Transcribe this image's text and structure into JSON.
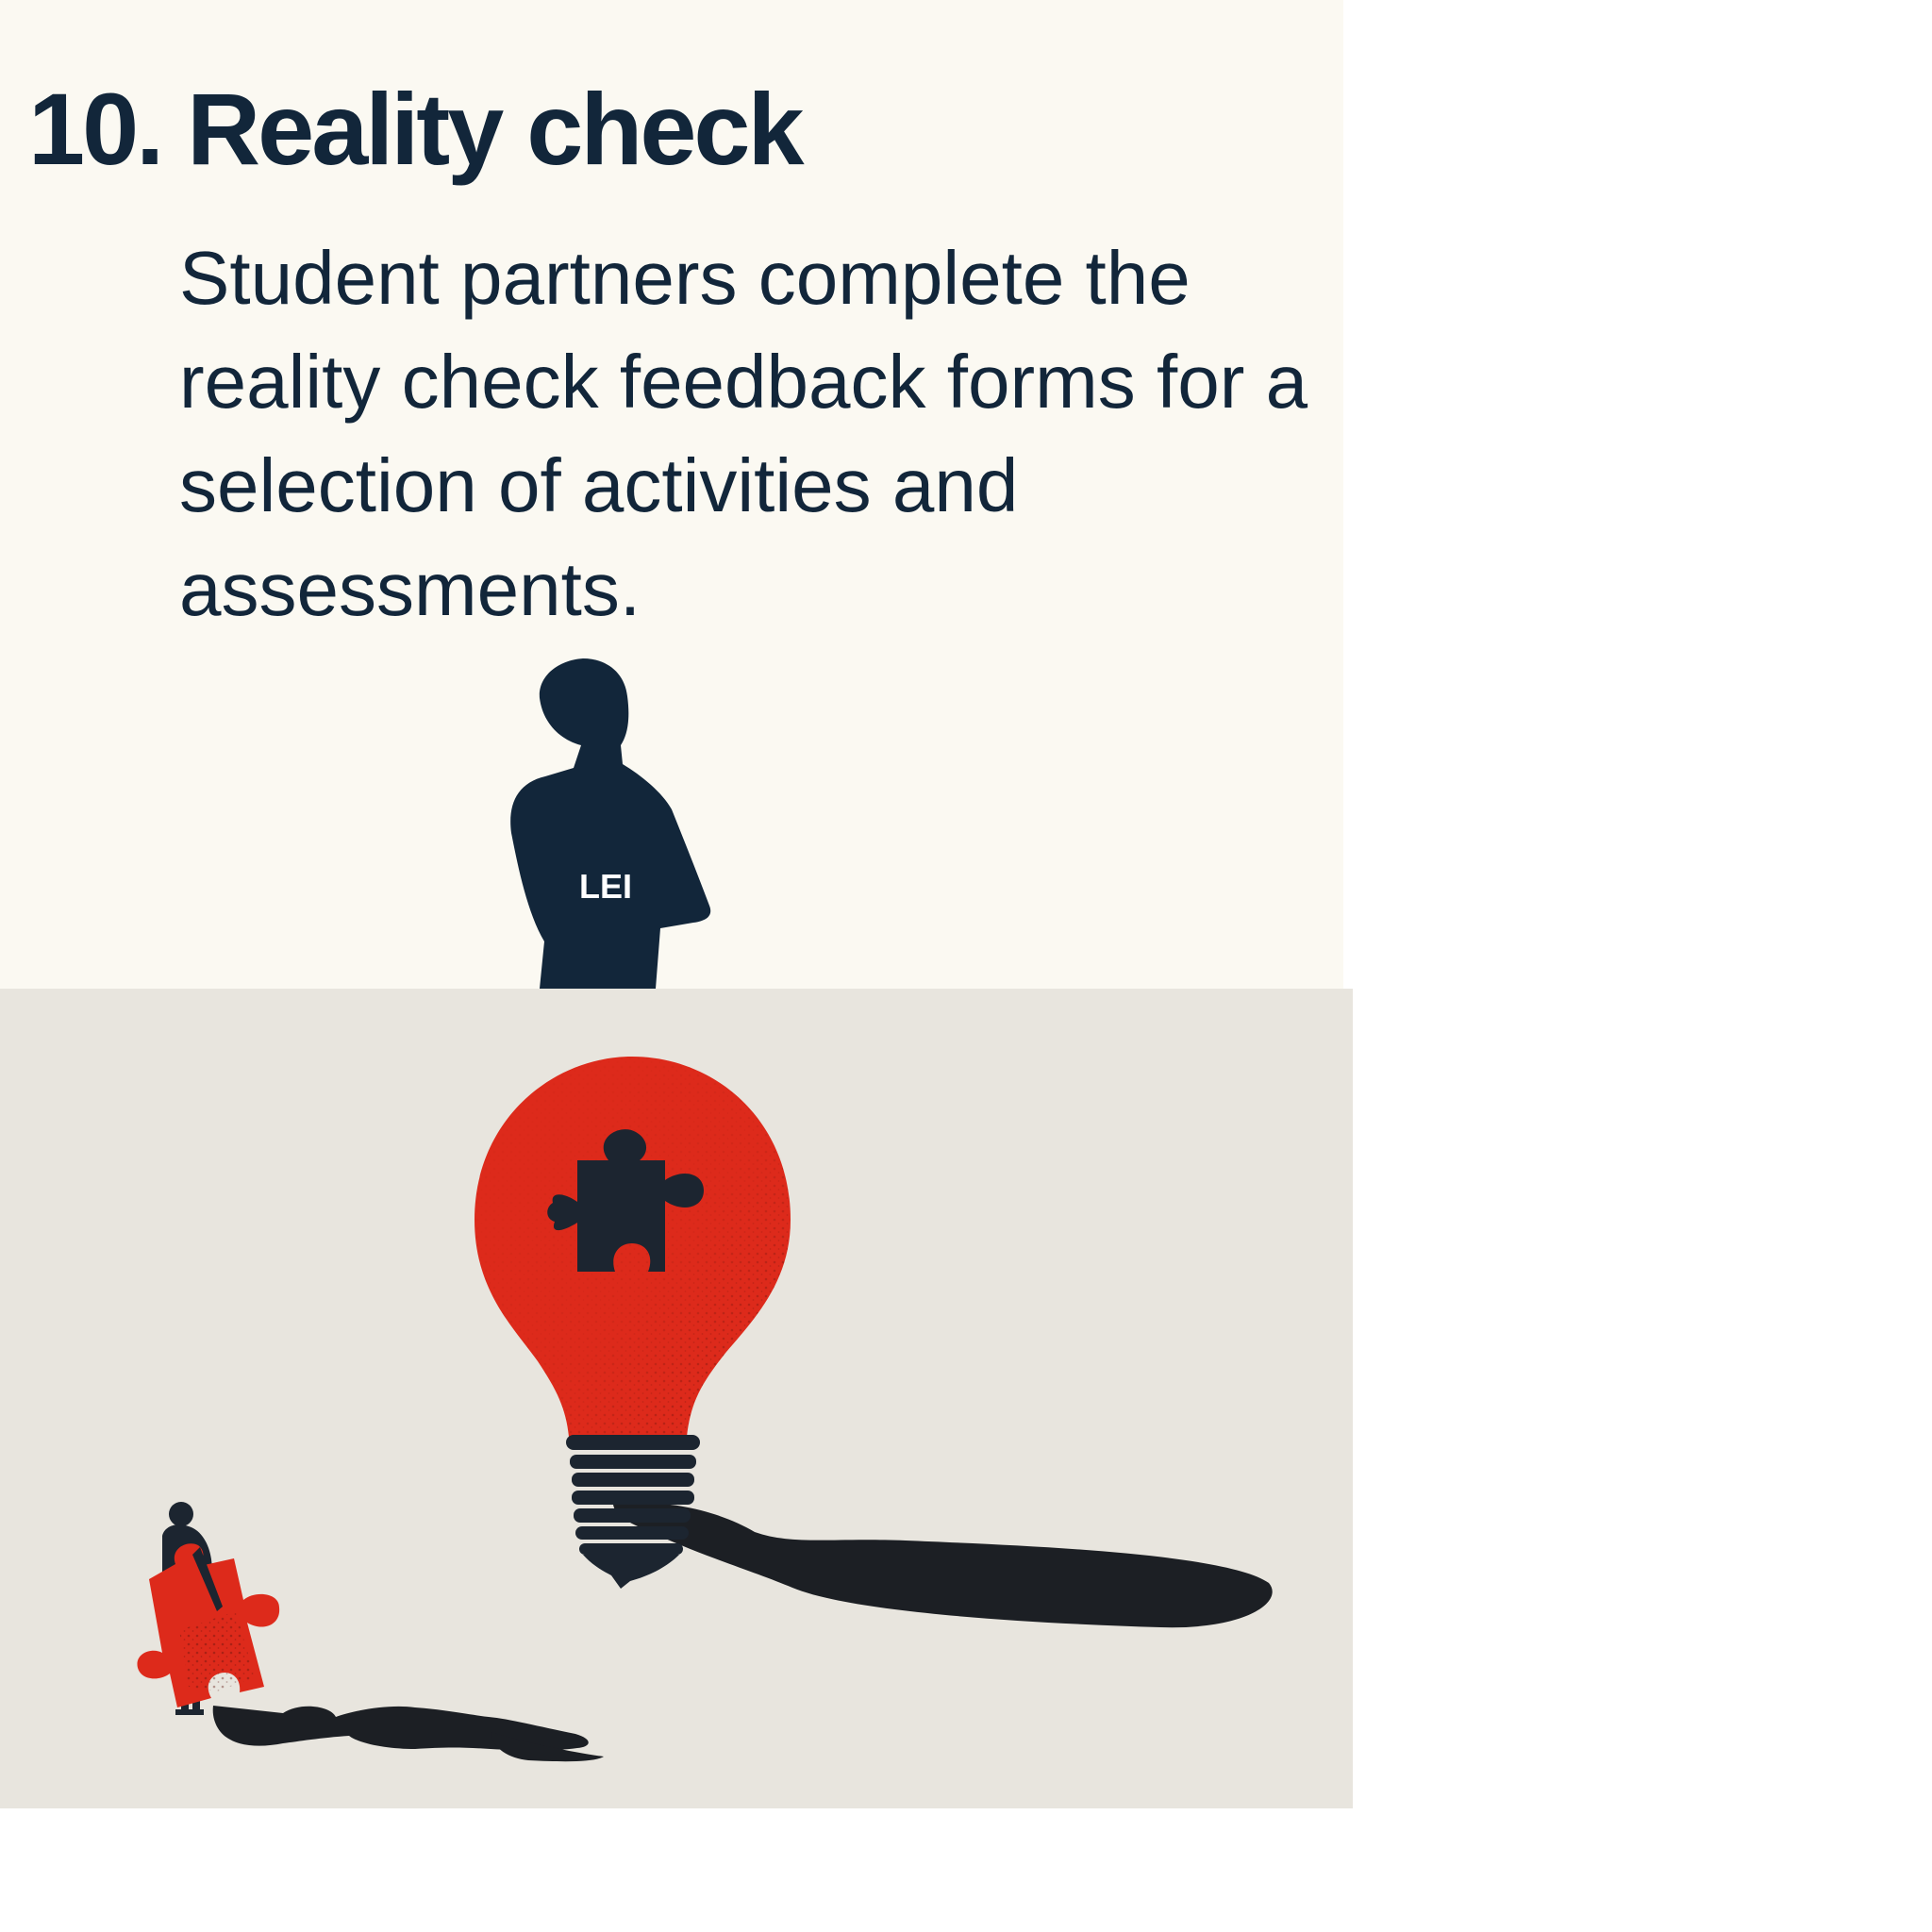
{
  "step": {
    "title": "10. Reality check",
    "description": "Student partners complete the reality check feedback forms for a selection of activities and assessments."
  },
  "figure": {
    "label": "LEI"
  },
  "colors": {
    "navy": "#12263a",
    "red": "#dd2a1b",
    "top_background": "#fbf9f2",
    "bottom_background": "#e8e5de",
    "shadow": "#1c1f24"
  },
  "icons": [
    "person-silhouette-icon",
    "lightbulb-icon",
    "puzzle-piece-icon",
    "person-carrying-puzzle-icon"
  ]
}
